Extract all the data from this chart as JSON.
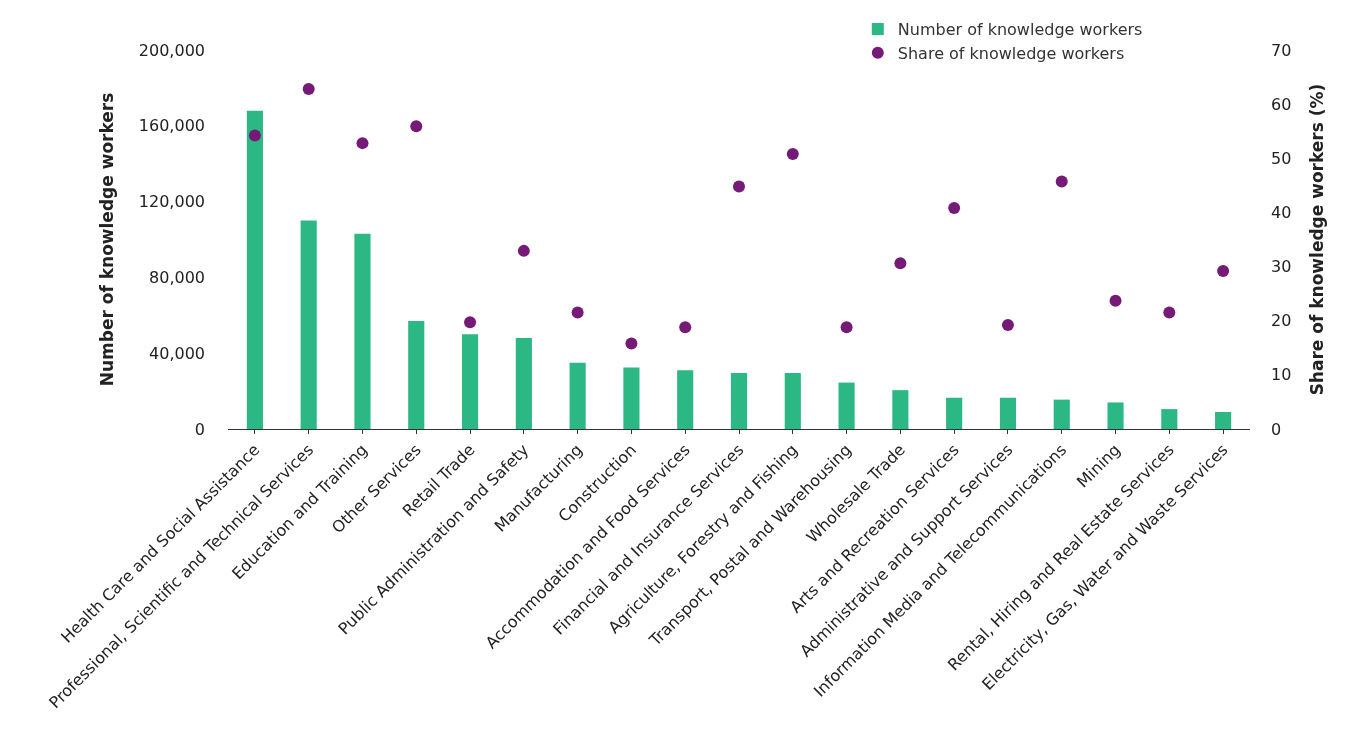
{
  "chart_data": {
    "type": "bar",
    "ylabel": "Number of knowledge workers",
    "y2label": "Share of knowledge workers (%)",
    "categories": [
      "Health Care and Social Assistance",
      "Professional, Scientific and Technical Services",
      "Education and Training",
      "Other Services",
      "Retail Trade",
      "Public Administration and Safety",
      "Manufacturing",
      "Construction",
      "Accommodation and Food Services",
      "Financial and Insurance Services",
      "Agriculture, Forestry and Fishing",
      "Transport, Postal and Warehousing",
      "Wholesale Trade",
      "Arts and Recreation Services",
      "Administrative and Support Services",
      "Information Media and Telecommunications",
      "Mining",
      "Rental, Hiring and Real Estate Services",
      "Electricity, Gas, Water and Waste Services"
    ],
    "series": [
      {
        "name": "Number of knowledge workers",
        "color": "#2bb884",
        "values": [
          168000,
          110000,
          103000,
          57000,
          50000,
          48000,
          35000,
          32500,
          31000,
          29500,
          29500,
          24500,
          20500,
          16500,
          16500,
          15500,
          14000,
          10500,
          9000
        ]
      },
      {
        "name": "Share of knowledge workers",
        "type": "scatter",
        "axis": "y2",
        "color": "#761a78",
        "marker": "circle",
        "values": [
          54.2,
          62.8,
          52.8,
          55.9,
          19.7,
          32.9,
          21.5,
          15.8,
          18.8,
          44.8,
          50.8,
          18.8,
          30.6,
          40.8,
          19.2,
          45.7,
          23.7,
          21.5,
          29.2
        ]
      }
    ],
    "ylim": [
      0,
      200000
    ],
    "yticks": [
      {
        "value": 0,
        "label": "0"
      },
      {
        "value": 40000,
        "label": "40,000"
      },
      {
        "value": 80000,
        "label": "80,000"
      },
      {
        "value": 120000,
        "label": "120,000"
      },
      {
        "value": 160000,
        "label": "160,000"
      },
      {
        "value": 200000,
        "label": "200,000"
      }
    ],
    "y2lim": [
      0,
      70
    ],
    "y2ticks": [
      0,
      10,
      20,
      30,
      40,
      50,
      60,
      70
    ],
    "grid": false,
    "legend": "top right"
  }
}
